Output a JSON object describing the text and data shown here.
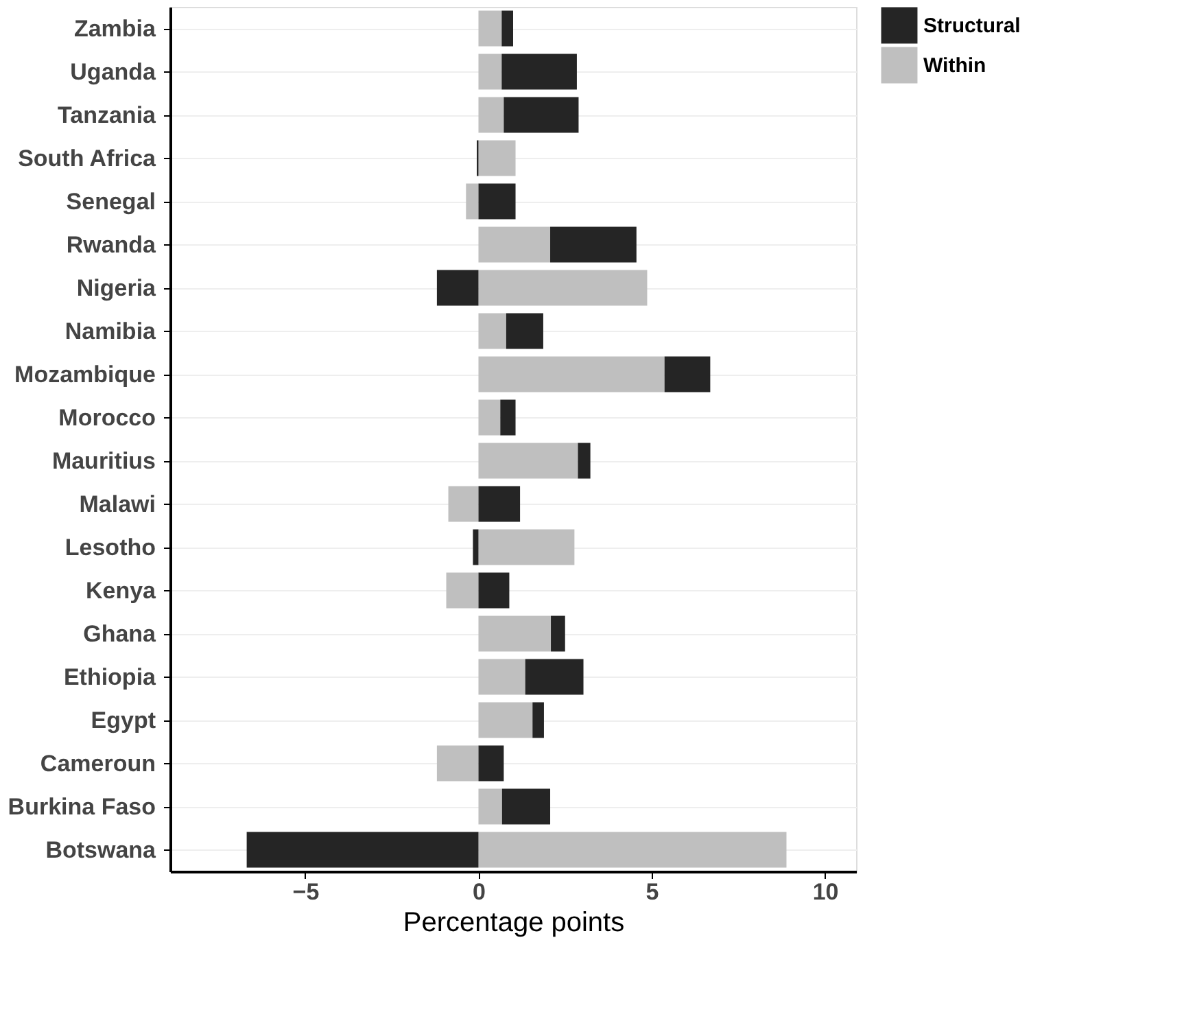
{
  "chart_data": {
    "type": "bar",
    "orientation": "horizontal",
    "stacked": true,
    "xlabel": "Percentage points",
    "categories": [
      "Zambia",
      "Uganda",
      "Tanzania",
      "South Africa",
      "Senegal",
      "Rwanda",
      "Nigeria",
      "Namibia",
      "Mozambique",
      "Morocco",
      "Mauritius",
      "Malawi",
      "Lesotho",
      "Kenya",
      "Ghana",
      "Ethiopia",
      "Egypt",
      "Cameroun",
      "Burkina Faso",
      "Botswana"
    ],
    "series": [
      {
        "name": "Within",
        "color": "#bfbfbf",
        "values": [
          0.67,
          0.67,
          0.73,
          1.07,
          -0.36,
          2.07,
          4.87,
          0.8,
          5.37,
          0.63,
          2.87,
          -0.87,
          2.77,
          -0.93,
          2.09,
          1.35,
          1.56,
          -1.2,
          0.68,
          8.89
        ]
      },
      {
        "name": "Structural",
        "color": "#252525",
        "values": [
          0.33,
          2.17,
          2.16,
          -0.05,
          1.07,
          2.49,
          -1.2,
          1.07,
          1.32,
          0.44,
          0.36,
          1.2,
          -0.16,
          0.89,
          0.41,
          1.68,
          0.33,
          0.73,
          1.39,
          -6.69
        ]
      }
    ],
    "xlim": [
      -8.9,
      10.9
    ],
    "xticks": [
      -5,
      0,
      5,
      10
    ],
    "grid": "y",
    "legend": "right"
  }
}
